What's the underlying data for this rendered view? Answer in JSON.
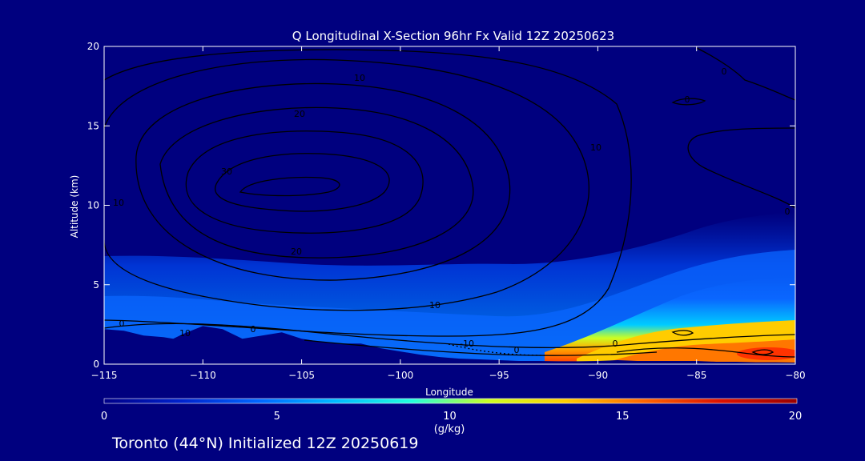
{
  "chart_data": {
    "type": "contour",
    "title": "Q Longitudinal X-Section 96hr  Fx Valid 12Z 20250623",
    "xlabel": "Longitude",
    "ylabel": "Altitude (km)",
    "xlim": [
      -115,
      -80
    ],
    "ylim": [
      0,
      20
    ],
    "x_ticks": [
      -115,
      -110,
      -105,
      -100,
      -95,
      -90,
      -85,
      -80
    ],
    "x_tick_labels": [
      "−115",
      "−110",
      "−105",
      "−100",
      "−95",
      "−90",
      "−85",
      "−80"
    ],
    "y_ticks": [
      0,
      5,
      10,
      15,
      20
    ],
    "y_tick_labels": [
      "0",
      "5",
      "10",
      "15",
      "20"
    ],
    "colorbar": {
      "label": "(g/kg)",
      "range": [
        0,
        20
      ],
      "ticks": [
        0,
        5,
        10,
        15,
        20
      ],
      "tick_labels": [
        "0",
        "5",
        "10",
        "15",
        "20"
      ],
      "colors": [
        "#000088",
        "#0022cc",
        "#0066ff",
        "#00bbff",
        "#22ffdd",
        "#ccff22",
        "#ffcc00",
        "#ff6600",
        "#dd1100",
        "#990000"
      ]
    },
    "contour_labels": [
      "10",
      "20",
      "30",
      "10",
      "20",
      "0",
      "0",
      "10",
      "0",
      "0",
      "10",
      "10",
      "-10",
      "0",
      "0",
      "0"
    ],
    "terrain": {
      "lon": [
        -115,
        -114,
        -113,
        -112,
        -111.5,
        -111,
        -110,
        -109,
        -108,
        -107,
        -106,
        -105,
        -104,
        -103,
        -102,
        -101,
        -100,
        -99,
        -98,
        -97,
        -96,
        -95,
        -94,
        -93,
        -92,
        -91,
        -90,
        -89,
        -88,
        -87,
        -86,
        -85,
        -84,
        -83,
        -82,
        -81,
        -80
      ],
      "alt_km": [
        2.2,
        2.1,
        1.8,
        1.7,
        1.6,
        1.9,
        2.4,
        2.2,
        1.6,
        1.8,
        2.0,
        1.6,
        1.4,
        1.3,
        1.3,
        1.0,
        0.8,
        0.6,
        0.45,
        0.35,
        0.3,
        0.25,
        0.2,
        0.2,
        0.18,
        0.18,
        0.2,
        0.25,
        0.2,
        0.2,
        0.2,
        0.2,
        0.15,
        0.15,
        0.12,
        0.12,
        0.1
      ]
    }
  },
  "footer": "Toronto (44°N) Initialized 12Z 20250619"
}
